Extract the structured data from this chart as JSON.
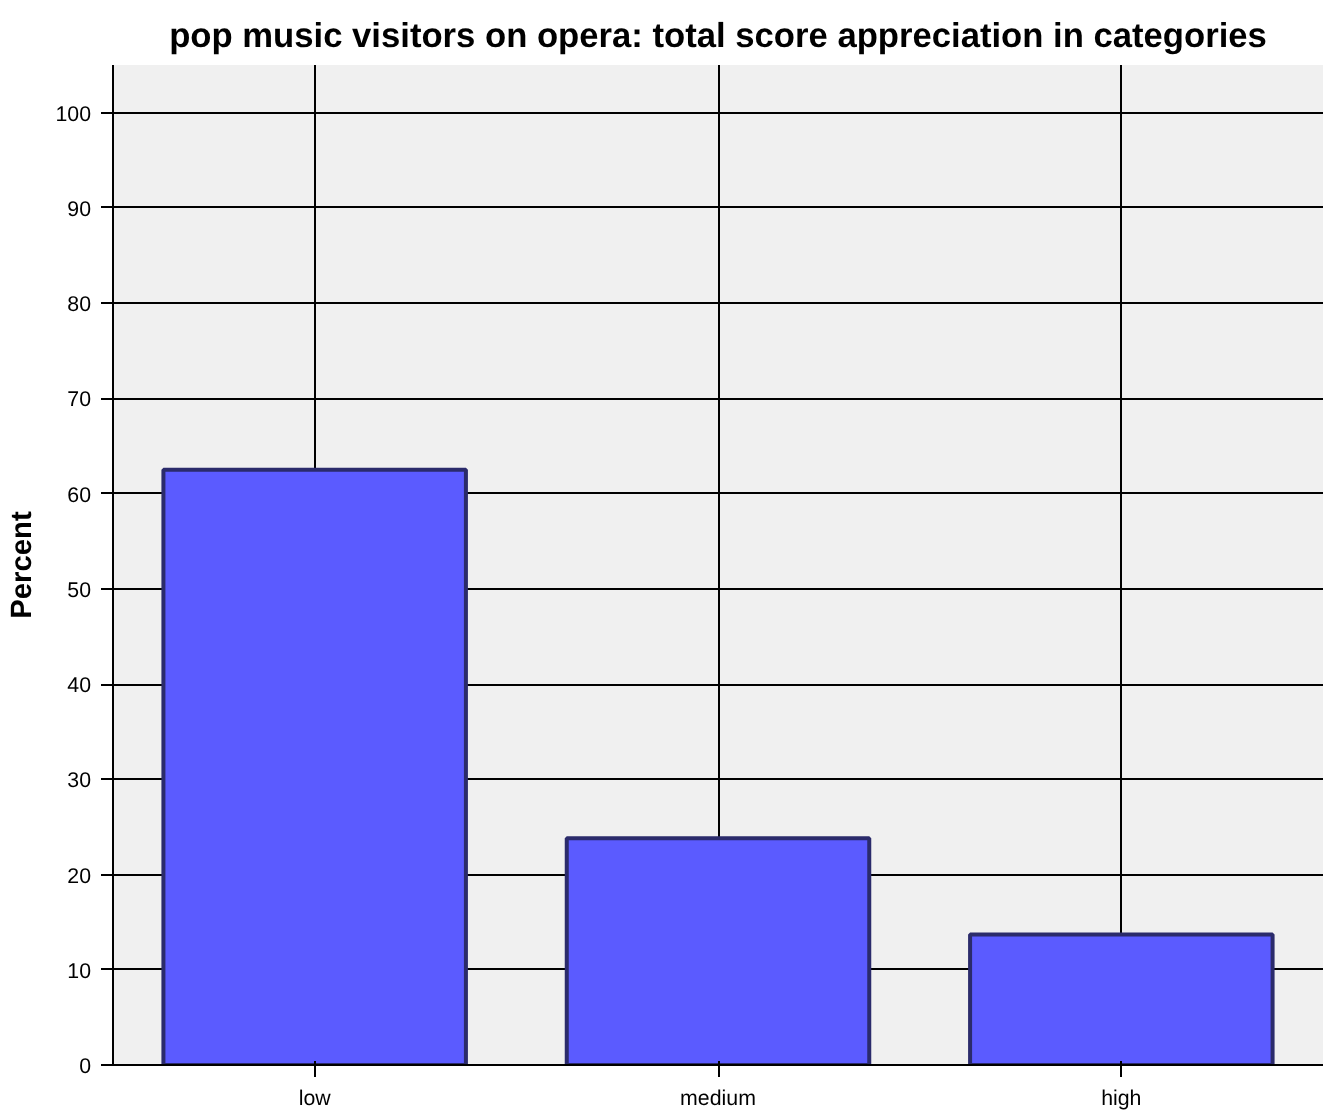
{
  "chart_data": {
    "type": "bar",
    "title": "pop music visitors on opera: total score appreciation in categories",
    "ylabel": "Percent",
    "categories": [
      "low",
      "medium",
      "high"
    ],
    "values": [
      62.5,
      23.8,
      13.7
    ],
    "color": "#5b5bff",
    "ylim": [
      0,
      105
    ],
    "yticks": [
      0,
      10,
      20,
      30,
      40,
      50,
      60,
      70,
      80,
      90,
      100
    ],
    "grid": true
  }
}
